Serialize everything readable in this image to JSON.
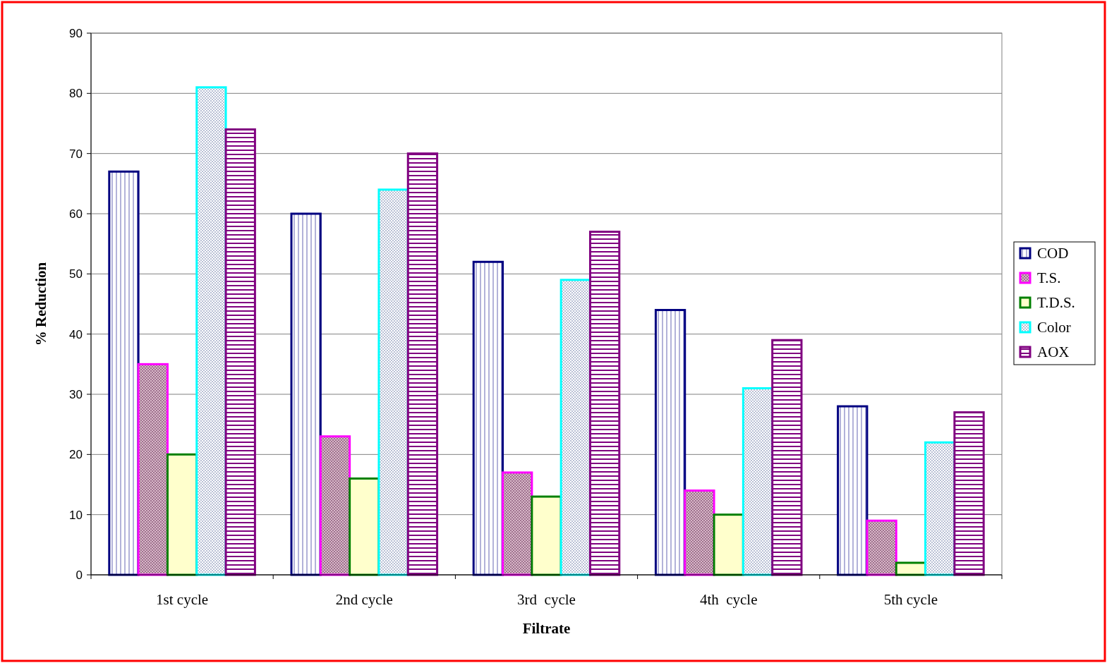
{
  "chart_data": {
    "type": "bar",
    "xlabel": "Filtrate",
    "ylabel": "% Reduction",
    "categories": [
      "1st cycle",
      "2nd cycle",
      "3rd  cycle",
      "4th  cycle",
      "5th cycle"
    ],
    "series": [
      {
        "name": "COD",
        "color": "#000080",
        "values": [
          67,
          60,
          52,
          44,
          28
        ]
      },
      {
        "name": "T.S.",
        "color": "#ff00ff",
        "values": [
          35,
          23,
          17,
          14,
          9
        ]
      },
      {
        "name": "T.D.S.",
        "color": "#008000",
        "values": [
          20,
          16,
          13,
          10,
          2
        ]
      },
      {
        "name": "Color",
        "color": "#00ffff",
        "values": [
          81,
          64,
          49,
          31,
          22
        ]
      },
      {
        "name": "AOX",
        "color": "#800080",
        "values": [
          74,
          70,
          57,
          39,
          27
        ]
      }
    ],
    "ylim": [
      0,
      90
    ],
    "yticks": [
      0,
      10,
      20,
      30,
      40,
      50,
      60,
      70,
      80,
      90
    ],
    "grid": "y",
    "legend": "right"
  }
}
